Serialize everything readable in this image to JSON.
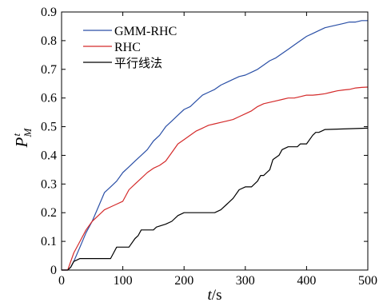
{
  "chart_data": {
    "type": "line",
    "xlabel": {
      "main": "t",
      "unit": "/s"
    },
    "ylabel": {
      "main": "P",
      "sub": "M",
      "sup": "t"
    },
    "xlim": [
      0,
      500
    ],
    "ylim": [
      0,
      0.9
    ],
    "xticks": [
      "0",
      "100",
      "200",
      "300",
      "400",
      "500"
    ],
    "yticks": [
      "0",
      "0.1",
      "0.2",
      "0.3",
      "0.4",
      "0.5",
      "0.6",
      "0.7",
      "0.8",
      "0.9"
    ],
    "grid": false,
    "legend_position": "top-left",
    "series": [
      {
        "name": "GMM-RHC",
        "color": "#2a4fa6",
        "x": [
          0,
          10,
          15,
          20,
          30,
          40,
          50,
          60,
          70,
          80,
          90,
          100,
          110,
          120,
          130,
          140,
          150,
          160,
          170,
          180,
          190,
          200,
          210,
          220,
          230,
          240,
          250,
          260,
          270,
          280,
          290,
          300,
          310,
          320,
          330,
          340,
          350,
          360,
          370,
          380,
          390,
          400,
          410,
          420,
          430,
          440,
          450,
          460,
          470,
          480,
          490,
          500
        ],
        "y": [
          0,
          0.0,
          0.01,
          0.03,
          0.08,
          0.13,
          0.17,
          0.22,
          0.27,
          0.29,
          0.31,
          0.34,
          0.36,
          0.38,
          0.4,
          0.42,
          0.45,
          0.47,
          0.5,
          0.52,
          0.54,
          0.56,
          0.57,
          0.59,
          0.61,
          0.62,
          0.63,
          0.645,
          0.655,
          0.665,
          0.675,
          0.68,
          0.69,
          0.7,
          0.715,
          0.73,
          0.74,
          0.755,
          0.77,
          0.785,
          0.8,
          0.815,
          0.825,
          0.835,
          0.845,
          0.85,
          0.855,
          0.86,
          0.865,
          0.865,
          0.87,
          0.87
        ]
      },
      {
        "name": "RHC",
        "color": "#d42a2a",
        "x": [
          0,
          10,
          15,
          20,
          30,
          40,
          50,
          60,
          70,
          80,
          90,
          100,
          110,
          120,
          130,
          140,
          150,
          160,
          170,
          180,
          190,
          200,
          210,
          220,
          230,
          240,
          250,
          260,
          270,
          280,
          290,
          300,
          310,
          320,
          330,
          340,
          350,
          360,
          370,
          380,
          390,
          400,
          410,
          420,
          430,
          440,
          450,
          460,
          470,
          480,
          490,
          500
        ],
        "y": [
          0,
          0.0,
          0.03,
          0.06,
          0.1,
          0.14,
          0.17,
          0.19,
          0.21,
          0.22,
          0.23,
          0.24,
          0.28,
          0.3,
          0.32,
          0.34,
          0.355,
          0.365,
          0.38,
          0.41,
          0.44,
          0.455,
          0.47,
          0.485,
          0.495,
          0.505,
          0.51,
          0.515,
          0.52,
          0.525,
          0.535,
          0.545,
          0.555,
          0.57,
          0.58,
          0.585,
          0.59,
          0.595,
          0.6,
          0.6,
          0.605,
          0.61,
          0.61,
          0.612,
          0.615,
          0.62,
          0.625,
          0.628,
          0.63,
          0.635,
          0.637,
          0.638
        ]
      },
      {
        "name": "平行线法",
        "color": "#000000",
        "x": [
          0,
          10,
          15,
          20,
          25,
          30,
          80,
          85,
          90,
          110,
          120,
          125,
          130,
          150,
          155,
          170,
          180,
          190,
          200,
          250,
          260,
          270,
          280,
          290,
          300,
          310,
          315,
          320,
          325,
          330,
          340,
          345,
          355,
          360,
          370,
          380,
          385,
          390,
          400,
          410,
          415,
          420,
          425,
          430,
          500
        ],
        "y": [
          0,
          0.0,
          0.01,
          0.03,
          0.035,
          0.04,
          0.04,
          0.06,
          0.08,
          0.08,
          0.11,
          0.12,
          0.14,
          0.14,
          0.15,
          0.16,
          0.17,
          0.19,
          0.2,
          0.2,
          0.21,
          0.23,
          0.25,
          0.28,
          0.29,
          0.29,
          0.3,
          0.31,
          0.33,
          0.33,
          0.35,
          0.385,
          0.4,
          0.42,
          0.43,
          0.43,
          0.43,
          0.44,
          0.44,
          0.47,
          0.48,
          0.48,
          0.485,
          0.49,
          0.495
        ]
      }
    ]
  }
}
